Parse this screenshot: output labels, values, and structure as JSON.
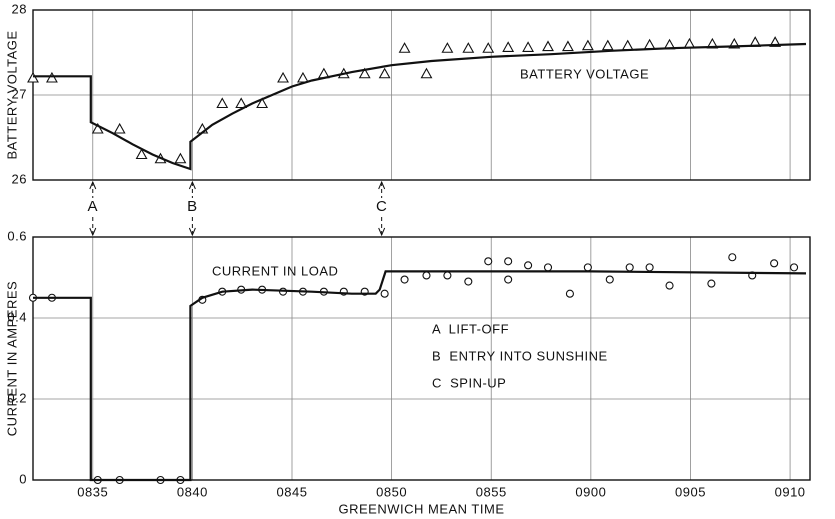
{
  "chart_data": [
    {
      "type": "line",
      "ylabel": "BATTERY VOLTAGE",
      "xlim": [
        32,
        71
      ],
      "ylim": [
        26,
        28
      ],
      "yticks": [
        26,
        27,
        28
      ],
      "xticks": [
        {
          "value": 35,
          "label": "0835"
        },
        {
          "value": 40,
          "label": "0840"
        },
        {
          "value": 45,
          "label": "0845"
        },
        {
          "value": 50,
          "label": "0850"
        },
        {
          "value": 55,
          "label": "0855"
        },
        {
          "value": 60,
          "label": "0900"
        },
        {
          "value": 65,
          "label": "0905"
        },
        {
          "value": 70,
          "label": "0910"
        }
      ],
      "grid": true,
      "series": [
        {
          "marker": "triangle",
          "color": "#111",
          "x": [
            32,
            32.95,
            35.25,
            36.35,
            37.45,
            38.4,
            39.4,
            40.5,
            41.5,
            42.45,
            43.5,
            44.55,
            45.55,
            46.6,
            47.6,
            48.65,
            49.65,
            50.65,
            51.75,
            52.8,
            53.85,
            54.85,
            55.85,
            56.85,
            57.85,
            58.85,
            59.85,
            60.85,
            61.85,
            62.95,
            63.95,
            64.95,
            66.1,
            67.2,
            68.25,
            69.25
          ],
          "values": [
            27.2,
            27.2,
            26.6,
            26.6,
            26.3,
            26.25,
            26.25,
            26.6,
            26.9,
            26.9,
            26.9,
            27.2,
            27.2,
            27.25,
            27.25,
            27.25,
            27.25,
            27.55,
            27.25,
            27.55,
            27.55,
            27.55,
            27.56,
            27.56,
            27.57,
            27.57,
            27.58,
            27.58,
            27.58,
            27.59,
            27.59,
            27.6,
            27.6,
            27.6,
            27.62,
            27.62
          ]
        },
        {
          "name": "BATTERY VOLTAGE",
          "marker": "none",
          "color": "#111",
          "x": [
            32,
            34.9,
            34.9,
            36,
            37,
            38,
            39,
            39.9,
            39.9,
            41,
            42,
            43,
            44,
            45,
            46,
            47,
            48,
            50,
            52,
            55,
            58,
            61,
            64,
            67,
            70.8
          ],
          "values": [
            27.22,
            27.22,
            26.68,
            26.55,
            26.42,
            26.3,
            26.2,
            26.13,
            26.45,
            26.65,
            26.78,
            26.9,
            27.0,
            27.1,
            27.17,
            27.22,
            27.27,
            27.35,
            27.4,
            27.45,
            27.48,
            27.52,
            27.55,
            27.57,
            27.6
          ]
        }
      ],
      "annotations": [
        {
          "text": "A",
          "x": 35
        },
        {
          "text": "B",
          "x": 40
        },
        {
          "text": "C",
          "x": 49.5
        }
      ]
    },
    {
      "type": "line",
      "ylabel": "CURRENT IN AMPERES",
      "xlabel": "GREENWICH MEAN TIME",
      "xlim": [
        32,
        71
      ],
      "ylim": [
        0,
        0.6
      ],
      "yticks": [
        0,
        0.2,
        0.4,
        0.6
      ],
      "xticks": [
        {
          "value": 35,
          "label": "0835"
        },
        {
          "value": 40,
          "label": "0840"
        },
        {
          "value": 45,
          "label": "0845"
        },
        {
          "value": 50,
          "label": "0850"
        },
        {
          "value": 55,
          "label": "0855"
        },
        {
          "value": 60,
          "label": "0900"
        },
        {
          "value": 65,
          "label": "0905"
        },
        {
          "value": 70,
          "label": "0910"
        }
      ],
      "grid": true,
      "series": [
        {
          "marker": "circle",
          "color": "#111",
          "x": [
            32,
            32.95,
            35.25,
            36.35,
            38.4,
            39.4,
            40.5,
            41.5,
            42.45,
            43.5,
            44.55,
            45.55,
            46.6,
            47.6,
            48.65,
            49.65,
            50.65,
            51.75,
            52.8,
            53.85,
            54.85,
            55.85,
            55.85,
            56.85,
            57.85,
            58.95,
            59.85,
            60.95,
            61.95,
            62.95,
            63.95,
            66.05,
            67.1,
            68.1,
            69.2,
            70.2
          ],
          "values": [
            0.45,
            0.45,
            0,
            0,
            0,
            0,
            0.445,
            0.465,
            0.47,
            0.47,
            0.465,
            0.465,
            0.465,
            0.465,
            0.465,
            0.46,
            0.495,
            0.505,
            0.505,
            0.49,
            0.54,
            0.54,
            0.495,
            0.53,
            0.525,
            0.46,
            0.525,
            0.495,
            0.525,
            0.525,
            0.48,
            0.485,
            0.55,
            0.505,
            0.535,
            0.525
          ]
        },
        {
          "name": "CURRENT IN LOAD",
          "marker": "none",
          "color": "#111",
          "x": [
            32,
            34.9,
            34.9,
            39.9,
            39.9,
            40.5,
            41.5,
            43,
            46,
            48,
            49.2,
            49.4,
            49.7,
            52,
            60,
            70.8
          ],
          "values": [
            0.45,
            0.45,
            0,
            0,
            0.43,
            0.45,
            0.465,
            0.47,
            0.465,
            0.46,
            0.46,
            0.47,
            0.515,
            0.515,
            0.515,
            0.51
          ]
        }
      ],
      "notes": [
        "A  LIFT-OFF",
        "B  ENTRY INTO SUNSHINE",
        "C  SPIN-UP"
      ]
    }
  ]
}
